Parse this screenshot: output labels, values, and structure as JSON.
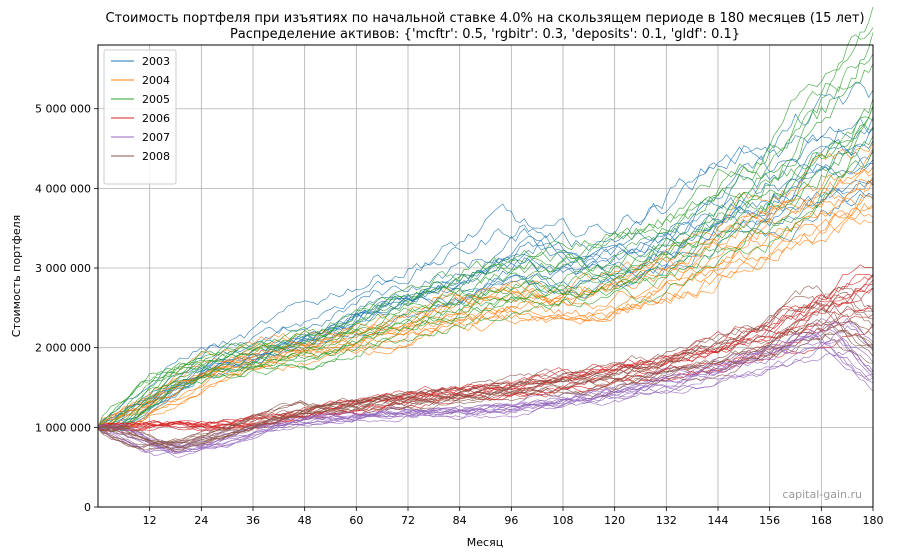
{
  "chart_data": {
    "type": "line",
    "title": "Стоимость портфеля при изъятиях по начальной ставке 4.0% на скользящем периоде в 180 месяцев (15 лет)",
    "subtitle": "Распределение активов: {'mcftr': 0.5, 'rgbitr': 0.3, 'deposits': 0.1, 'gldf': 0.1}",
    "xlabel": "Месяц",
    "ylabel": "Стоимость портфеля",
    "xlim": [
      0,
      180
    ],
    "ylim": [
      0,
      5800000
    ],
    "xticks": [
      12,
      24,
      36,
      48,
      60,
      72,
      84,
      96,
      108,
      120,
      132,
      144,
      156,
      168,
      180
    ],
    "xtick_labels": [
      "12",
      "24",
      "36",
      "48",
      "60",
      "72",
      "84",
      "96",
      "108",
      "120",
      "132",
      "144",
      "156",
      "168",
      "180"
    ],
    "yticks": [
      0,
      1000000,
      2000000,
      3000000,
      4000000,
      5000000
    ],
    "ytick_labels": [
      "0",
      "1 000 000",
      "2 000 000",
      "3 000 000",
      "4 000 000",
      "5 000 000"
    ],
    "grid": true,
    "legend_position": "top-left",
    "watermark": "capital-gain.ru",
    "series": [
      {
        "name": "2003",
        "color": "#1f77b4",
        "points": [
          [
            0,
            1000000
          ],
          [
            12,
            1400000
          ],
          [
            24,
            1800000
          ],
          [
            36,
            1950000
          ],
          [
            48,
            2200000
          ],
          [
            60,
            2500000
          ],
          [
            72,
            2700000
          ],
          [
            84,
            2900000
          ],
          [
            96,
            3200000
          ],
          [
            108,
            3000000
          ],
          [
            120,
            3100000
          ],
          [
            132,
            3400000
          ],
          [
            144,
            3800000
          ],
          [
            156,
            4000000
          ],
          [
            168,
            4300000
          ],
          [
            180,
            4500000
          ]
        ]
      },
      {
        "name": "2004",
        "color": "#ff7f0e",
        "points": [
          [
            0,
            1000000
          ],
          [
            12,
            1300000
          ],
          [
            24,
            1700000
          ],
          [
            36,
            1900000
          ],
          [
            48,
            2000000
          ],
          [
            60,
            2100000
          ],
          [
            72,
            2300000
          ],
          [
            84,
            2500000
          ],
          [
            96,
            2600000
          ],
          [
            108,
            2500000
          ],
          [
            120,
            2700000
          ],
          [
            132,
            2900000
          ],
          [
            144,
            3200000
          ],
          [
            156,
            3500000
          ],
          [
            168,
            3800000
          ],
          [
            180,
            4100000
          ]
        ]
      },
      {
        "name": "2005",
        "color": "#2ca02c",
        "points": [
          [
            0,
            1000000
          ],
          [
            12,
            1600000
          ],
          [
            24,
            1800000
          ],
          [
            36,
            1900000
          ],
          [
            48,
            2000000
          ],
          [
            60,
            2300000
          ],
          [
            72,
            2500000
          ],
          [
            84,
            2700000
          ],
          [
            96,
            2800000
          ],
          [
            108,
            2900000
          ],
          [
            120,
            3000000
          ],
          [
            132,
            3300000
          ],
          [
            144,
            3700000
          ],
          [
            156,
            4100000
          ],
          [
            168,
            4700000
          ],
          [
            180,
            5500000
          ]
        ]
      },
      {
        "name": "2006",
        "color": "#d62728",
        "points": [
          [
            0,
            1000000
          ],
          [
            12,
            1050000
          ],
          [
            24,
            1000000
          ],
          [
            36,
            1100000
          ],
          [
            48,
            1200000
          ],
          [
            60,
            1300000
          ],
          [
            72,
            1400000
          ],
          [
            84,
            1450000
          ],
          [
            96,
            1500000
          ],
          [
            108,
            1600000
          ],
          [
            120,
            1700000
          ],
          [
            132,
            1800000
          ],
          [
            144,
            1950000
          ],
          [
            156,
            2200000
          ],
          [
            168,
            2500000
          ],
          [
            180,
            2800000
          ]
        ]
      },
      {
        "name": "2007",
        "color": "#9467bd",
        "points": [
          [
            0,
            1000000
          ],
          [
            12,
            700000
          ],
          [
            24,
            800000
          ],
          [
            36,
            1000000
          ],
          [
            48,
            1100000
          ],
          [
            60,
            1150000
          ],
          [
            72,
            1200000
          ],
          [
            84,
            1200000
          ],
          [
            96,
            1250000
          ],
          [
            108,
            1350000
          ],
          [
            120,
            1450000
          ],
          [
            132,
            1600000
          ],
          [
            144,
            1750000
          ],
          [
            156,
            1950000
          ],
          [
            168,
            2200000
          ],
          [
            180,
            1600000
          ]
        ]
      },
      {
        "name": "2008",
        "color": "#8c564b",
        "points": [
          [
            0,
            1000000
          ],
          [
            12,
            750000
          ],
          [
            24,
            900000
          ],
          [
            36,
            1100000
          ],
          [
            48,
            1250000
          ],
          [
            60,
            1300000
          ],
          [
            72,
            1350000
          ],
          [
            84,
            1400000
          ],
          [
            96,
            1500000
          ],
          [
            108,
            1550000
          ],
          [
            120,
            1650000
          ],
          [
            132,
            1800000
          ],
          [
            144,
            1950000
          ],
          [
            156,
            2200000
          ],
          [
            168,
            2500000
          ],
          [
            180,
            2000000
          ]
        ]
      }
    ]
  }
}
